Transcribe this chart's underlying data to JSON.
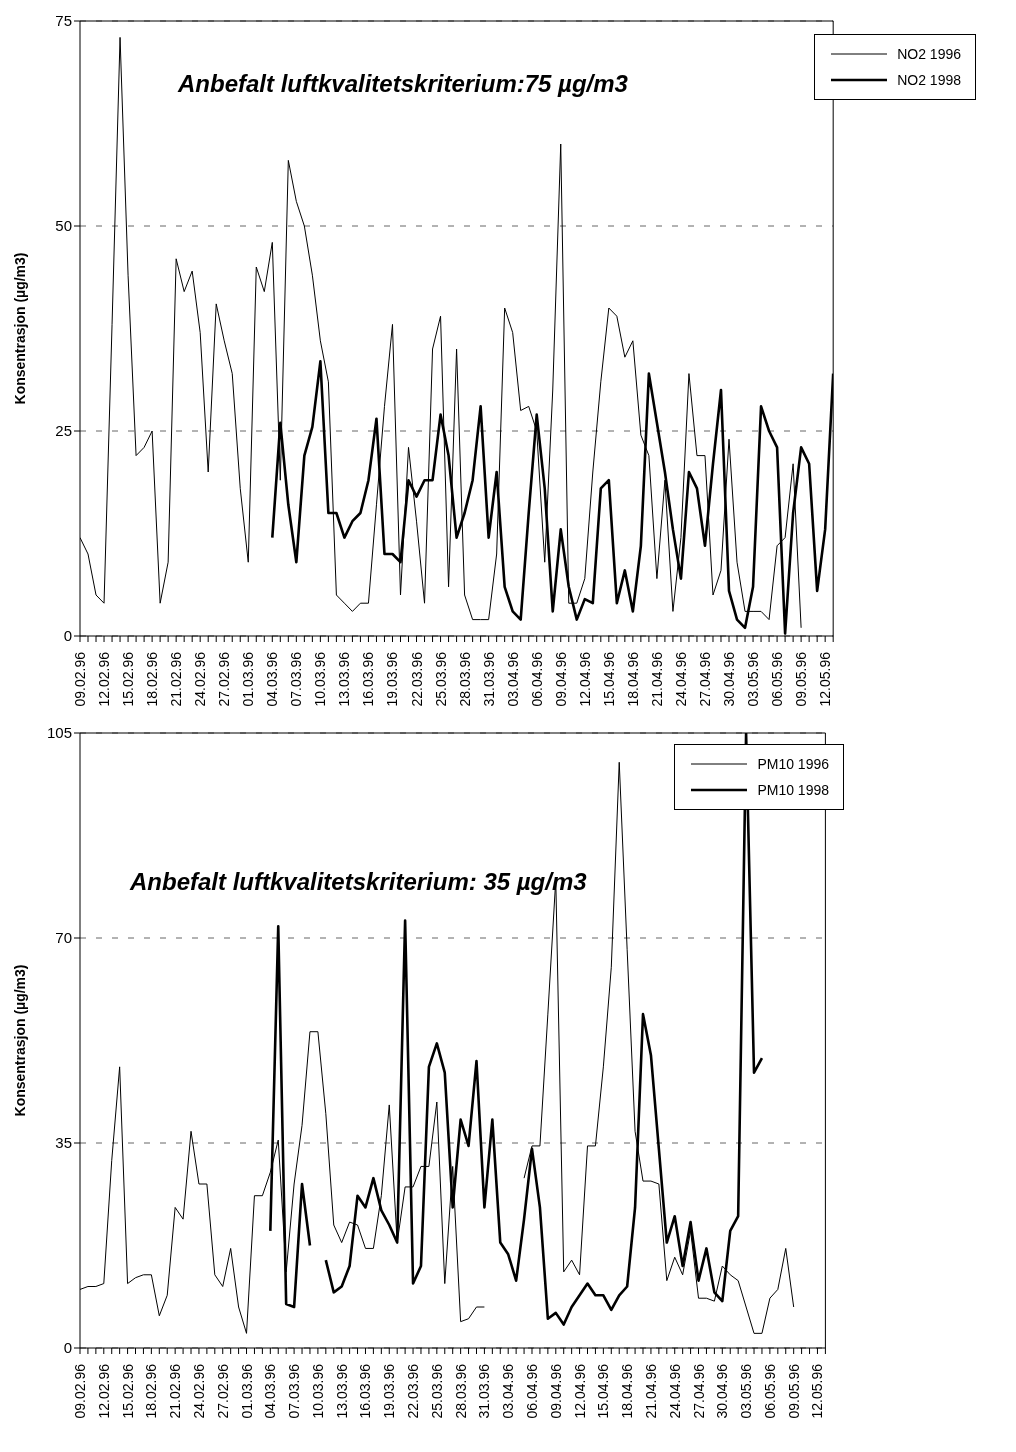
{
  "chart_data": [
    {
      "type": "line",
      "ylabel": "Konsentrasjon (µg/m3)",
      "annotations": [
        "Anbefalt luftkvalitetskriterium:75 µg/m3"
      ],
      "categories": [
        "09.02.96",
        null,
        null,
        "12.02.96",
        null,
        null,
        "15.02.96",
        null,
        null,
        "18.02.96",
        null,
        null,
        "21.02.96",
        null,
        null,
        "24.02.96",
        null,
        null,
        "27.02.96",
        null,
        null,
        "01.03.96",
        null,
        null,
        "04.03.96",
        null,
        null,
        "07.03.96",
        null,
        null,
        "10.03.96",
        null,
        null,
        "13.03.96",
        null,
        null,
        "16.03.96",
        null,
        null,
        "19.03.96",
        null,
        null,
        "22.03.96",
        null,
        null,
        "25.03.96",
        null,
        null,
        "28.03.96",
        null,
        null,
        "31.03.96",
        null,
        null,
        "03.04.96",
        null,
        null,
        "06.04.96",
        null,
        null,
        "09.04.96",
        null,
        null,
        "12.04.96",
        null,
        null,
        "15.04.96",
        null,
        null,
        "18.04.96",
        null,
        null,
        "21.04.96",
        null,
        null,
        "24.04.96",
        null,
        null,
        "27.04.96",
        null,
        null,
        "30.04.96",
        null,
        null,
        "03.05.96",
        null,
        null,
        "06.05.96",
        null,
        null,
        "09.05.96",
        null,
        null,
        "12.05.96",
        null
      ],
      "series": [
        {
          "name": "NO2 1996",
          "color": "#000000",
          "values": [
            12,
            10,
            5,
            4,
            38,
            73,
            44,
            22,
            23,
            25,
            4,
            9,
            46,
            42,
            44.5,
            37,
            20,
            40.5,
            36,
            32,
            18,
            9,
            45,
            42,
            48,
            19,
            58,
            53,
            50,
            44,
            36,
            31,
            5,
            4,
            3,
            4,
            4,
            16,
            28,
            38,
            5,
            23,
            14,
            4,
            35,
            39,
            6,
            35,
            5,
            2,
            2,
            2,
            10,
            40,
            37,
            27.5,
            28,
            25,
            9,
            30,
            60,
            4,
            4,
            7,
            20,
            31,
            40,
            39,
            34,
            36,
            24.5,
            22,
            7,
            19,
            3,
            12,
            32,
            22,
            22,
            5,
            8,
            24,
            9,
            3,
            3,
            3,
            2,
            11,
            12,
            21,
            1,
            null,
            null,
            null,
            null
          ]
        },
        {
          "name": "NO2 1998",
          "color": "#000000",
          "values": [
            null,
            null,
            null,
            null,
            null,
            null,
            null,
            null,
            null,
            null,
            null,
            null,
            null,
            null,
            null,
            null,
            null,
            null,
            null,
            null,
            null,
            null,
            null,
            null,
            12,
            26,
            16,
            9,
            22,
            25.5,
            33.5,
            15,
            15,
            12,
            14,
            15,
            19,
            26.5,
            10,
            10,
            9,
            19,
            17,
            19,
            19,
            27,
            22,
            12,
            15,
            19,
            28,
            12,
            20,
            6,
            3,
            2,
            15,
            27,
            18,
            3,
            13,
            6,
            2,
            4.5,
            4,
            18,
            19,
            4,
            8,
            3,
            11,
            32,
            26,
            20,
            13,
            7,
            20,
            18,
            11,
            21,
            30,
            5.5,
            2,
            1,
            6,
            28,
            25,
            23,
            0.3,
            15,
            23,
            21,
            5.5,
            13,
            32
          ]
        }
      ],
      "ylim": [
        0,
        75
      ],
      "yticks": [
        0,
        25,
        50,
        75
      ],
      "grid": "y",
      "legend": "top right",
      "marker": "none",
      "line_style": "solid"
    },
    {
      "type": "line",
      "ylabel": "Konsentrasjon (µg/m3)",
      "annotations": [
        "Anbefalt luftkvalitetskriterium: 35 µg/m3"
      ],
      "categories": [
        "09.02.96",
        null,
        null,
        "12.02.96",
        null,
        null,
        "15.02.96",
        null,
        null,
        "18.02.96",
        null,
        null,
        "21.02.96",
        null,
        null,
        "24.02.96",
        null,
        null,
        "27.02.96",
        null,
        null,
        "01.03.96",
        null,
        null,
        "04.03.96",
        null,
        null,
        "07.03.96",
        null,
        null,
        "10.03.96",
        null,
        null,
        "13.03.96",
        null,
        null,
        "16.03.96",
        null,
        null,
        "19.03.96",
        null,
        null,
        "22.03.96",
        null,
        null,
        "25.03.96",
        null,
        null,
        "28.03.96",
        null,
        null,
        "31.03.96",
        null,
        null,
        "03.04.96",
        null,
        null,
        "06.04.96",
        null,
        null,
        "09.04.96",
        null,
        null,
        "12.04.96",
        null,
        null,
        "15.04.96",
        null,
        null,
        "18.04.96",
        null,
        null,
        "21.04.96",
        null,
        null,
        "24.04.96",
        null,
        null,
        "27.04.96",
        null,
        null,
        "30.04.96",
        null,
        null,
        "03.05.96",
        null,
        null,
        "06.05.96",
        null,
        null,
        "09.05.96",
        null,
        null,
        "12.05.96",
        null
      ],
      "series": [
        {
          "name": "PM10 1996",
          "color": "#000000",
          "values": [
            10,
            10.5,
            10.5,
            11,
            32,
            48,
            11,
            12,
            12.5,
            12.5,
            5.5,
            9,
            24,
            22,
            37,
            28,
            28,
            12.5,
            10.5,
            17,
            7,
            2.5,
            26,
            26,
            30,
            35.5,
            13,
            28,
            38,
            54,
            54,
            40,
            21,
            18,
            21.5,
            21,
            17,
            17,
            26,
            41.5,
            18,
            27.5,
            27.5,
            31,
            31,
            42,
            11,
            31,
            4.5,
            5,
            7,
            7,
            null,
            null,
            null,
            null,
            29,
            34.5,
            34.5,
            57,
            80,
            13,
            15,
            12.5,
            34.5,
            34.5,
            48,
            65,
            100,
            68,
            37,
            28.5,
            28.5,
            28,
            11.5,
            15.5,
            12.5,
            20,
            8.5,
            8.5,
            8,
            14,
            12.5,
            11.5,
            7,
            2.5,
            2.5,
            8.5,
            10,
            17,
            7,
            null,
            null,
            null,
            null
          ]
        },
        {
          "name": "PM10 1998",
          "color": "#000000",
          "values": [
            null,
            null,
            null,
            null,
            null,
            null,
            null,
            null,
            null,
            null,
            null,
            null,
            null,
            null,
            null,
            null,
            null,
            null,
            null,
            null,
            null,
            null,
            null,
            null,
            20,
            72,
            7.5,
            7,
            28,
            17.5,
            null,
            15,
            9.5,
            10.5,
            14,
            26,
            24,
            29,
            23.5,
            21,
            18,
            73,
            11,
            14,
            48,
            52,
            47,
            24,
            39,
            34.5,
            49,
            24,
            39,
            18,
            16,
            11.5,
            22,
            34,
            24,
            5,
            6,
            4,
            7,
            9,
            11,
            9,
            9,
            6.5,
            9,
            10.5,
            24,
            57,
            50,
            34,
            18,
            22.5,
            14,
            21.5,
            11.5,
            17,
            9.5,
            8,
            20,
            22.5,
            105,
            47,
            49.5,
            null,
            null,
            null,
            null,
            null,
            null,
            null,
            null
          ]
        }
      ],
      "ylim": [
        0,
        105
      ],
      "yticks": [
        0,
        35,
        70,
        105
      ],
      "grid": "y",
      "legend": "top right",
      "marker": "none",
      "line_style": "solid"
    }
  ]
}
